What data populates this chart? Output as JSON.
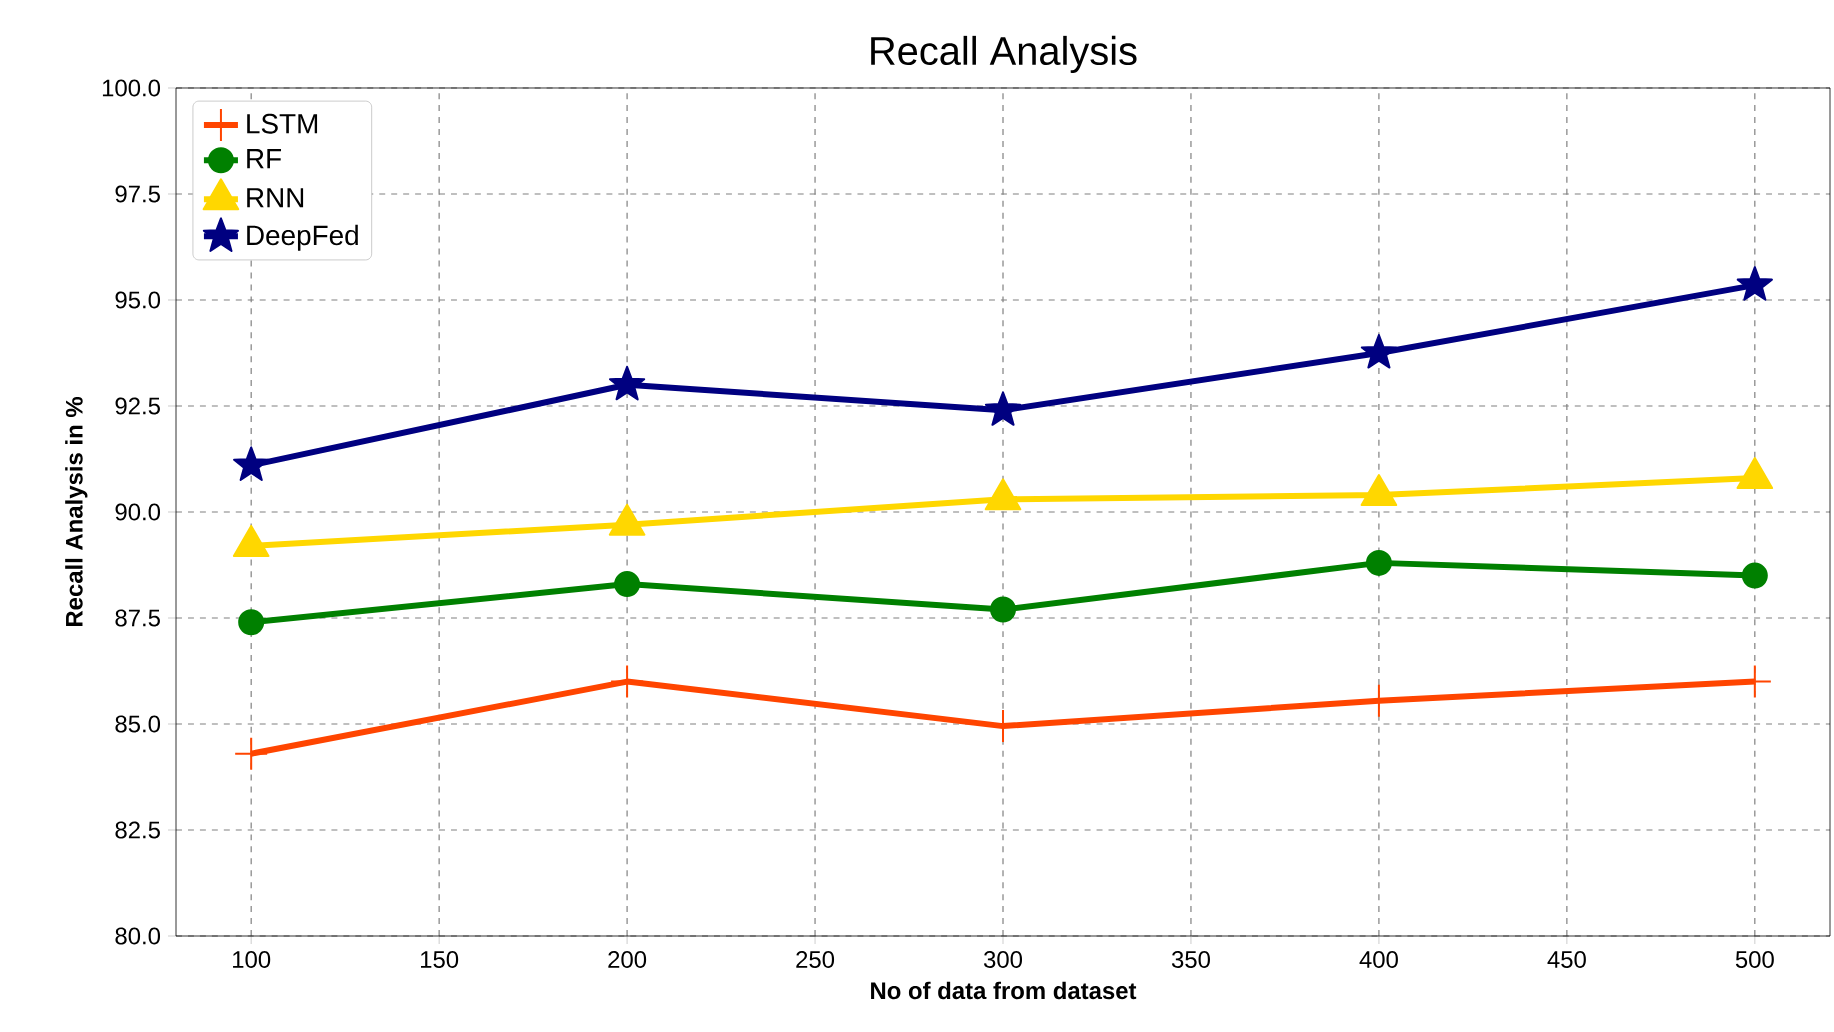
{
  "chart_data": {
    "type": "line",
    "title": "Recall  Analysis",
    "xlabel": "No of data from dataset",
    "ylabel": "Recall Analysis  in %",
    "x": [
      100,
      200,
      300,
      400,
      500
    ],
    "series": [
      {
        "name": "LSTM",
        "color": "#ff4500",
        "marker": "cross",
        "values": [
          84.3,
          86.0,
          84.95,
          85.55,
          86.0
        ]
      },
      {
        "name": "RF",
        "color": "#008000",
        "marker": "circle",
        "values": [
          87.4,
          88.3,
          87.7,
          88.8,
          88.5
        ]
      },
      {
        "name": "RNN",
        "color": "#ffd700",
        "marker": "triangle",
        "values": [
          89.2,
          89.7,
          90.3,
          90.4,
          90.8
        ]
      },
      {
        "name": "DeepFed",
        "color": "#000080",
        "marker": "star",
        "values": [
          91.1,
          93.0,
          92.4,
          93.75,
          95.35
        ]
      }
    ],
    "xlim": [
      80,
      520
    ],
    "ylim": [
      80,
      100
    ],
    "xticks": [
      100,
      150,
      200,
      250,
      300,
      350,
      400,
      450,
      500
    ],
    "yticks": [
      {
        "value": 80,
        "label": "80.0"
      },
      {
        "value": 82.5,
        "label": "82.5"
      },
      {
        "value": 85,
        "label": "85.0"
      },
      {
        "value": 87.5,
        "label": "87.5"
      },
      {
        "value": 90,
        "label": "90.0"
      },
      {
        "value": 92.5,
        "label": "92.5"
      },
      {
        "value": 95,
        "label": "95.0"
      },
      {
        "value": 97.5,
        "label": "97.5"
      },
      {
        "value": 100,
        "label": "100.0"
      }
    ],
    "grid": true,
    "legend": "top left"
  }
}
